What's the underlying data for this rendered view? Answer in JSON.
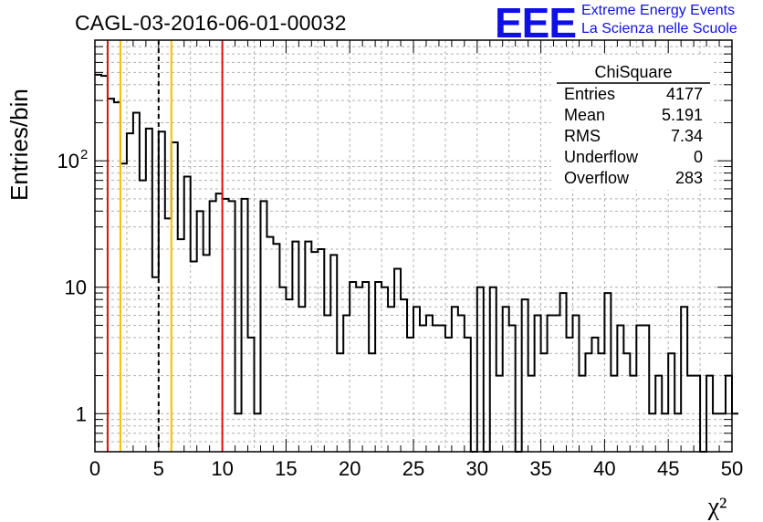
{
  "header": {
    "title": "CAGL-03-2016-06-01-00032",
    "logo_text": "EEE",
    "logo_line1": "Extreme Energy Events",
    "logo_line2": "La Scienza nelle Scuole",
    "logo_color": "#1010e6"
  },
  "chart_data": {
    "type": "histogram",
    "ylabel": "Entries/bin",
    "xlabel": "χ²",
    "xlim": [
      0,
      50
    ],
    "ylim": [
      0.5,
      900
    ],
    "yscale": "log",
    "grid": true,
    "bin_width": 0.5,
    "x_ticks": [
      0,
      5,
      10,
      15,
      20,
      25,
      30,
      35,
      40,
      45,
      50
    ],
    "y_ticks": [
      {
        "value": 1,
        "label": "1"
      },
      {
        "value": 10,
        "label": "10"
      },
      {
        "value": 100,
        "label": "10",
        "exponent": "2"
      }
    ],
    "bin_values": [
      480,
      470,
      310,
      290,
      95,
      165,
      240,
      70,
      180,
      12,
      170,
      35,
      140,
      24,
      75,
      16,
      40,
      18,
      48,
      55,
      50,
      48,
      1,
      50,
      4,
      1,
      48,
      25,
      22,
      10,
      8,
      23,
      7,
      23,
      19,
      20,
      6,
      18,
      3,
      6,
      11,
      10,
      11,
      3,
      11,
      10,
      7,
      14,
      8,
      4,
      7,
      5,
      6,
      5,
      5,
      4,
      7,
      6,
      4,
      0.3,
      10,
      0.3,
      10,
      2,
      7,
      5,
      0.3,
      8,
      2,
      6,
      3,
      6,
      6,
      9,
      4,
      6,
      2,
      3,
      4,
      3,
      9,
      2,
      5,
      3,
      2,
      5,
      5,
      1,
      2,
      1,
      3,
      1,
      7,
      2,
      2,
      0.3,
      2,
      1,
      1,
      2,
      1
    ],
    "vertical_lines": [
      {
        "x": 1,
        "color": "#e01010",
        "style": "solid"
      },
      {
        "x": 2,
        "color": "#f0c000",
        "style": "solid"
      },
      {
        "x": 5,
        "color": "#000000",
        "style": "dashed"
      },
      {
        "x": 6,
        "color": "#f0c000",
        "style": "solid"
      },
      {
        "x": 10,
        "color": "#e01010",
        "style": "solid"
      }
    ],
    "stats": {
      "name": "ChiSquare",
      "rows": [
        {
          "label": "Entries",
          "value": "4177"
        },
        {
          "label": "Mean",
          "value": "5.191"
        },
        {
          "label": "RMS",
          "value": "7.34"
        },
        {
          "label": "Underflow",
          "value": "0"
        },
        {
          "label": "Overflow",
          "value": "283"
        }
      ]
    }
  }
}
